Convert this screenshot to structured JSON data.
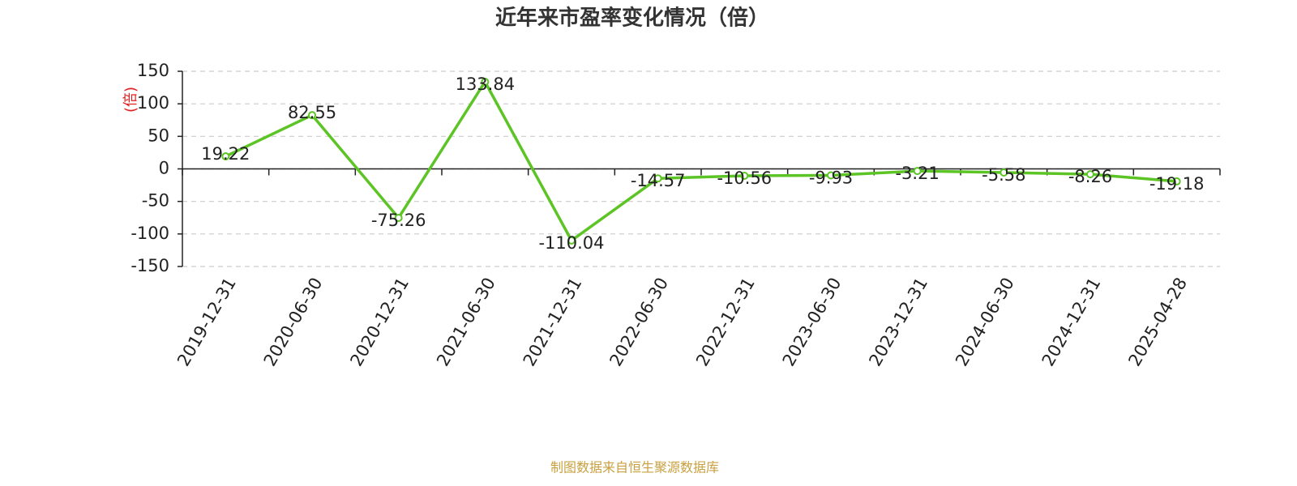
{
  "chart_data": {
    "type": "line",
    "title": "近年来市盈率变化情况（倍）",
    "y_label": "(倍)",
    "source_note": "制图数据来自恒生聚源数据库",
    "categories": [
      "2019-12-31",
      "2020-06-30",
      "2020-12-31",
      "2021-06-30",
      "2021-12-31",
      "2022-06-30",
      "2022-12-31",
      "2023-06-30",
      "2023-12-31",
      "2024-06-30",
      "2024-12-31",
      "2025-04-28"
    ],
    "series": [
      {
        "name": "市盈率",
        "color": "#5cc425",
        "values": [
          19.22,
          82.55,
          -75.26,
          133.84,
          -110.04,
          -14.57,
          -10.56,
          -9.93,
          -3.21,
          -5.58,
          -8.26,
          -19.18
        ]
      }
    ],
    "ylim": [
      -150,
      150
    ],
    "yticks": [
      -150,
      -100,
      -50,
      0,
      50,
      100,
      150
    ],
    "grid": true
  }
}
